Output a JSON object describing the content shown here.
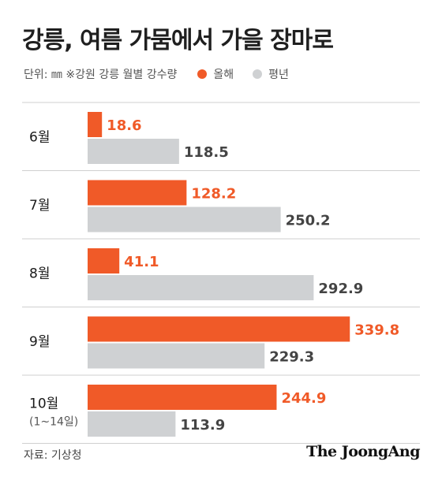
{
  "title": "강릉, 여름 가뭄에서 가을 장마로",
  "unit_note": "단위: ㎜ ※강원 강릉 월별 강수량",
  "source": "자료: 기상청",
  "logo": "The JoongAng",
  "colors": {
    "this_year": "#f05a28",
    "normal": "#cfd1d3",
    "divider": "#cfcfcf"
  },
  "chart_data": {
    "type": "bar",
    "orientation": "horizontal",
    "categories": [
      {
        "label": "6월",
        "sub": ""
      },
      {
        "label": "7월",
        "sub": ""
      },
      {
        "label": "8월",
        "sub": ""
      },
      {
        "label": "9월",
        "sub": ""
      },
      {
        "label": "10월",
        "sub": "(1~14일)"
      }
    ],
    "series": [
      {
        "name": "올해",
        "color": "#f05a28",
        "values": [
          18.6,
          128.2,
          41.1,
          339.8,
          244.9
        ]
      },
      {
        "name": "평년",
        "color": "#cfd1d3",
        "values": [
          118.5,
          250.2,
          292.9,
          229.3,
          113.9
        ]
      }
    ],
    "xlim": [
      0,
      360
    ],
    "grid": false,
    "legend_position": "top-left"
  }
}
